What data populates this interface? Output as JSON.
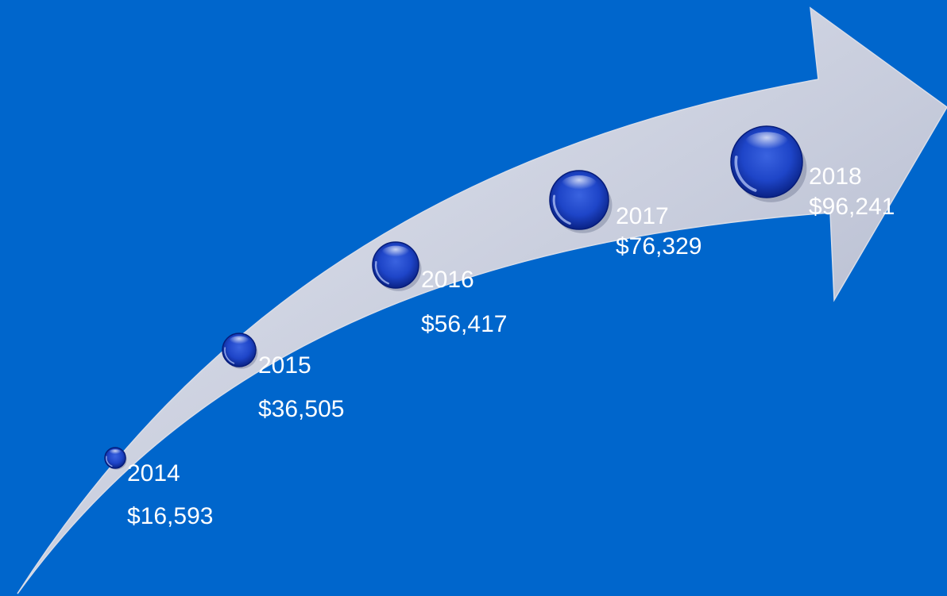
{
  "colors": {
    "background": "#0066CC",
    "arrow_light": "#E6E9F2",
    "arrow_dark": "#A9B0C6",
    "bubble_dark": "#061C7A",
    "bubble_mid": "#1E45C8",
    "label_text": "#FFFFFF"
  },
  "milestones": [
    {
      "year": "2014",
      "amount": "$16,593",
      "value": 16593
    },
    {
      "year": "2015",
      "amount": "$36,505",
      "value": 36505
    },
    {
      "year": "2016",
      "amount": "$56,417",
      "value": 56417
    },
    {
      "year": "2017",
      "amount": "$76,329",
      "value": 76329
    },
    {
      "year": "2018",
      "amount": "$96,241",
      "value": 96241
    }
  ]
}
